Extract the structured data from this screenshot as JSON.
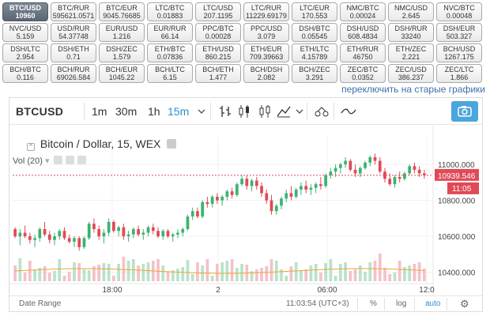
{
  "tickers": [
    {
      "pair": "BTC/USD",
      "value": "10960",
      "active": true
    },
    {
      "pair": "BTC/RUR",
      "value": "595621.0571"
    },
    {
      "pair": "BTC/EUR",
      "value": "9045.76685"
    },
    {
      "pair": "LTC/BTC",
      "value": "0.01883"
    },
    {
      "pair": "LTC/USD",
      "value": "207.1195"
    },
    {
      "pair": "LTC/RUR",
      "value": "11229.69179"
    },
    {
      "pair": "LTC/EUR",
      "value": "170.553"
    },
    {
      "pair": "NMC/BTC",
      "value": "0.00024"
    },
    {
      "pair": "NMC/USD",
      "value": "2.645"
    },
    {
      "pair": "NVC/BTC",
      "value": "0.00048"
    },
    {
      "pair": "NVC/USD",
      "value": "5.159"
    },
    {
      "pair": "USD/RUR",
      "value": "54.37748"
    },
    {
      "pair": "EUR/USD",
      "value": "1.216"
    },
    {
      "pair": "EUR/RUR",
      "value": "66.14"
    },
    {
      "pair": "PPC/BTC",
      "value": "0.00028"
    },
    {
      "pair": "PPC/USD",
      "value": "3.079"
    },
    {
      "pair": "DSH/BTC",
      "value": "0.05545"
    },
    {
      "pair": "DSH/USD",
      "value": "608.4834"
    },
    {
      "pair": "DSH/RUR",
      "value": "33240"
    },
    {
      "pair": "DSH/EUR",
      "value": "503.327"
    },
    {
      "pair": "DSH/LTC",
      "value": "2.954"
    },
    {
      "pair": "DSH/ETH",
      "value": "0.71"
    },
    {
      "pair": "DSH/ZEC",
      "value": "1.579"
    },
    {
      "pair": "ETH/BTC",
      "value": "0.07836"
    },
    {
      "pair": "ETH/USD",
      "value": "860.215"
    },
    {
      "pair": "ETH/EUR",
      "value": "709.39663"
    },
    {
      "pair": "ETH/LTC",
      "value": "4.15789"
    },
    {
      "pair": "ETH/RUR",
      "value": "46750"
    },
    {
      "pair": "ETH/ZEC",
      "value": "2.221"
    },
    {
      "pair": "BCH/USD",
      "value": "1267.175"
    },
    {
      "pair": "BCH/BTC",
      "value": "0.116"
    },
    {
      "pair": "BCH/RUR",
      "value": "69026.584"
    },
    {
      "pair": "BCH/EUR",
      "value": "1045.22"
    },
    {
      "pair": "BCH/LTC",
      "value": "6.15"
    },
    {
      "pair": "BCH/ETH",
      "value": "1.477"
    },
    {
      "pair": "BCH/DSH",
      "value": "2.082"
    },
    {
      "pair": "BCH/ZEC",
      "value": "3.291"
    },
    {
      "pair": "ZEC/BTC",
      "value": "0.0352"
    },
    {
      "pair": "ZEC/USD",
      "value": "386.237"
    },
    {
      "pair": "ZEC/LTC",
      "value": "1.866"
    }
  ],
  "old_charts_link": "переключить на старые графики",
  "toolbar": {
    "symbol": "BTCUSD",
    "timeframes": [
      "1m",
      "30m",
      "1h",
      "15m"
    ],
    "active_timeframe": "15m"
  },
  "legend": {
    "title": "Bitcoin / Dollar, 15, WEX",
    "volume": "Vol (20)"
  },
  "price_axis": {
    "ticks": [
      "11000.000",
      "10800.000",
      "10600.000",
      "10400.000"
    ],
    "last_price": "10939.546",
    "countdown": "11:05"
  },
  "time_axis": [
    "18:00",
    "2",
    "06:00",
    "12:0"
  ],
  "bottom": {
    "date_range": "Date Range",
    "clock": "11:03:54 (UTC+3)",
    "percent": "%",
    "log": "log",
    "auto": "auto"
  },
  "colors": {
    "up": "#3cb371",
    "down": "#e04a57",
    "accent": "#2b8ecf",
    "active_ticker": "#6b7683"
  },
  "chart_data": {
    "type": "candlestick",
    "pair": "BTC/USD",
    "interval": "15",
    "ylim": [
      10350,
      11150
    ],
    "x_ticks": [
      "18:00",
      "2",
      "06:00",
      "12:0"
    ],
    "candles": [
      [
        10640,
        10650,
        10590,
        10600
      ],
      [
        10600,
        10640,
        10550,
        10620
      ],
      [
        10620,
        10660,
        10590,
        10600
      ],
      [
        10600,
        10620,
        10560,
        10580
      ],
      [
        10580,
        10610,
        10540,
        10590
      ],
      [
        10590,
        10650,
        10570,
        10640
      ],
      [
        10640,
        10680,
        10600,
        10610
      ],
      [
        10610,
        10630,
        10560,
        10580
      ],
      [
        10580,
        10620,
        10550,
        10600
      ],
      [
        10600,
        10640,
        10580,
        10630
      ],
      [
        10630,
        10650,
        10580,
        10590
      ],
      [
        10590,
        10610,
        10560,
        10570
      ],
      [
        10570,
        10600,
        10540,
        10590
      ],
      [
        10590,
        10600,
        10520,
        10540
      ],
      [
        10540,
        10600,
        10530,
        10590
      ],
      [
        10590,
        10680,
        10580,
        10670
      ],
      [
        10670,
        10700,
        10620,
        10640
      ],
      [
        10640,
        10660,
        10580,
        10600
      ],
      [
        10600,
        10640,
        10560,
        10620
      ],
      [
        10620,
        10700,
        10600,
        10680
      ],
      [
        10680,
        10690,
        10620,
        10630
      ],
      [
        10630,
        10660,
        10600,
        10650
      ],
      [
        10650,
        10670,
        10580,
        10600
      ],
      [
        10600,
        10630,
        10570,
        10610
      ],
      [
        10610,
        10650,
        10590,
        10640
      ],
      [
        10640,
        10660,
        10600,
        10610
      ],
      [
        10610,
        10640,
        10580,
        10620
      ],
      [
        10620,
        10660,
        10600,
        10650
      ],
      [
        10650,
        10670,
        10610,
        10630
      ],
      [
        10630,
        10650,
        10590,
        10600
      ],
      [
        10600,
        10640,
        10580,
        10630
      ],
      [
        10630,
        10640,
        10590,
        10600
      ],
      [
        10600,
        10620,
        10570,
        10610
      ],
      [
        10610,
        10640,
        10590,
        10620
      ],
      [
        10620,
        10650,
        10600,
        10640
      ],
      [
        10640,
        10720,
        10630,
        10710
      ],
      [
        10710,
        10760,
        10690,
        10740
      ],
      [
        10740,
        10760,
        10700,
        10710
      ],
      [
        10710,
        10800,
        10700,
        10790
      ],
      [
        10790,
        10820,
        10760,
        10780
      ],
      [
        10780,
        10830,
        10760,
        10820
      ],
      [
        10820,
        10840,
        10780,
        10800
      ],
      [
        10800,
        10830,
        10770,
        10820
      ],
      [
        10820,
        10860,
        10800,
        10850
      ],
      [
        10850,
        10870,
        10810,
        10830
      ],
      [
        10830,
        10900,
        10820,
        10890
      ],
      [
        10890,
        10940,
        10880,
        10920
      ],
      [
        10920,
        10940,
        10860,
        10880
      ],
      [
        10880,
        10920,
        10850,
        10910
      ],
      [
        10910,
        10930,
        10860,
        10880
      ],
      [
        10880,
        10900,
        10820,
        10840
      ],
      [
        10840,
        10860,
        10780,
        10800
      ],
      [
        10800,
        10830,
        10720,
        10740
      ],
      [
        10740,
        10780,
        10720,
        10770
      ],
      [
        10770,
        10820,
        10750,
        10810
      ],
      [
        10810,
        10860,
        10790,
        10840
      ],
      [
        10840,
        10880,
        10800,
        10820
      ],
      [
        10820,
        10870,
        10810,
        10860
      ],
      [
        10860,
        10900,
        10830,
        10880
      ],
      [
        10880,
        10910,
        10840,
        10860
      ],
      [
        10860,
        10890,
        10830,
        10870
      ],
      [
        10870,
        10900,
        10840,
        10890
      ],
      [
        10890,
        10930,
        10860,
        10880
      ],
      [
        10880,
        10950,
        10870,
        10940
      ],
      [
        10940,
        10980,
        10920,
        10960
      ],
      [
        10960,
        11000,
        10930,
        10980
      ],
      [
        10980,
        11010,
        10950,
        11000
      ],
      [
        11000,
        11040,
        10980,
        11020
      ],
      [
        11020,
        11030,
        10960,
        10970
      ],
      [
        10970,
        11000,
        10930,
        10950
      ],
      [
        10950,
        10990,
        10930,
        10980
      ],
      [
        10980,
        11020,
        10970,
        11010
      ],
      [
        11010,
        11050,
        10990,
        11040
      ],
      [
        11040,
        11060,
        11000,
        11020
      ],
      [
        11020,
        11040,
        10950,
        10960
      ],
      [
        10960,
        10980,
        10900,
        10920
      ],
      [
        10920,
        10950,
        10880,
        10890
      ],
      [
        10890,
        10940,
        10870,
        10930
      ],
      [
        10930,
        10960,
        10900,
        10920
      ],
      [
        10920,
        10960,
        10910,
        10950
      ],
      [
        10950,
        11000,
        10940,
        10990
      ],
      [
        10990,
        11010,
        10950,
        10970
      ],
      [
        10970,
        10990,
        10930,
        10950
      ],
      [
        10950,
        10970,
        10920,
        10940
      ]
    ]
  }
}
